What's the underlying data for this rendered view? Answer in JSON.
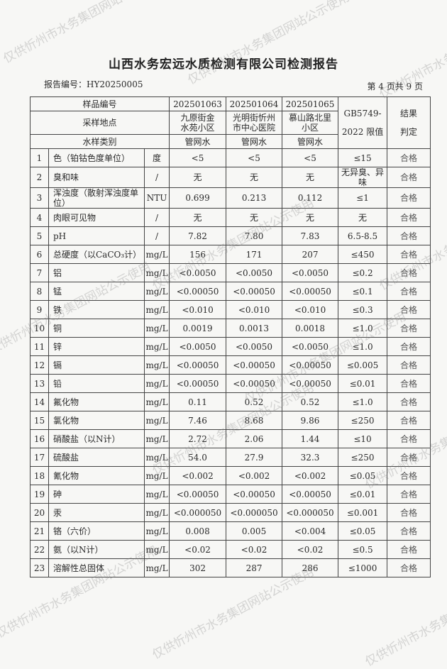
{
  "title": "山西水务宏远水质检测有限公司检测报告",
  "report_no": "报告编号：HY20250005",
  "page_no": "第 4 页共 9 页",
  "watermark": "仅供忻州市水务集团网站公示使用",
  "header": {
    "sample_no_label": "样品编号",
    "location_label": "采样地点",
    "type_label": "水样类别",
    "limit_label": "GB5749-2022 限值",
    "result_label": "结果判定",
    "samples": [
      {
        "no": "202501063",
        "location": "九原街金水苑小区",
        "type": "管网水"
      },
      {
        "no": "202501064",
        "location": "光明街忻州市中心医院",
        "type": "管网水"
      },
      {
        "no": "202501065",
        "location": "慕山路北里小区",
        "type": "管网水"
      }
    ]
  },
  "rows": [
    [
      "1",
      "色（铂钴色度单位）",
      "度",
      "<5",
      "<5",
      "<5",
      "≤15",
      "合格"
    ],
    [
      "2",
      "臭和味",
      "/",
      "无",
      "无",
      "无",
      "无异臭、异味",
      "合格"
    ],
    [
      "3",
      "浑浊度（散射浑浊度单位）",
      "NTU",
      "0.699",
      "0.213",
      "0.112",
      "≤1",
      "合格"
    ],
    [
      "4",
      "肉眼可见物",
      "/",
      "无",
      "无",
      "无",
      "无",
      "合格"
    ],
    [
      "5",
      "pH",
      "/",
      "7.82",
      "7.80",
      "7.83",
      "6.5-8.5",
      "合格"
    ],
    [
      "6",
      "总硬度（以CaCO₃计）",
      "mg/L",
      "156",
      "171",
      "207",
      "≤450",
      "合格"
    ],
    [
      "7",
      "铝",
      "mg/L",
      "<0.0050",
      "<0.0050",
      "<0.0050",
      "≤0.2",
      "合格"
    ],
    [
      "8",
      "锰",
      "mg/L",
      "<0.00050",
      "<0.00050",
      "<0.00050",
      "≤0.1",
      "合格"
    ],
    [
      "9",
      "铁",
      "mg/L",
      "<0.010",
      "<0.010",
      "<0.010",
      "≤0.3",
      "合格"
    ],
    [
      "10",
      "铜",
      "mg/L",
      "0.0019",
      "0.0013",
      "0.0018",
      "≤1.0",
      "合格"
    ],
    [
      "11",
      "锌",
      "mg/L",
      "<0.0050",
      "<0.0050",
      "<0.0050",
      "≤1.0",
      "合格"
    ],
    [
      "12",
      "镉",
      "mg/L",
      "<0.00050",
      "<0.00050",
      "<0.00050",
      "≤0.005",
      "合格"
    ],
    [
      "13",
      "铅",
      "mg/L",
      "<0.00050",
      "<0.00050",
      "<0.00050",
      "≤0.01",
      "合格"
    ],
    [
      "14",
      "氟化物",
      "mg/L",
      "0.11",
      "0.52",
      "0.52",
      "≤1.0",
      "合格"
    ],
    [
      "15",
      "氯化物",
      "mg/L",
      "7.46",
      "8.68",
      "9.86",
      "≤250",
      "合格"
    ],
    [
      "16",
      "硝酸盐（以N计）",
      "mg/L",
      "2.72",
      "2.06",
      "1.44",
      "≤10",
      "合格"
    ],
    [
      "17",
      "硫酸盐",
      "mg/L",
      "54.0",
      "27.9",
      "32.3",
      "≤250",
      "合格"
    ],
    [
      "18",
      "氰化物",
      "mg/L",
      "<0.002",
      "<0.002",
      "<0.002",
      "≤0.05",
      "合格"
    ],
    [
      "19",
      "砷",
      "mg/L",
      "<0.00050",
      "<0.00050",
      "<0.00050",
      "≤0.01",
      "合格"
    ],
    [
      "20",
      "汞",
      "mg/L",
      "<0.000050",
      "<0.000050",
      "<0.000050",
      "≤0.001",
      "合格"
    ],
    [
      "21",
      "铬（六价）",
      "mg/L",
      "0.008",
      "0.005",
      "<0.004",
      "≤0.05",
      "合格"
    ],
    [
      "22",
      "氨（以N计）",
      "mg/L",
      "<0.02",
      "<0.02",
      "<0.02",
      "≤0.5",
      "合格"
    ],
    [
      "23",
      "溶解性总固体",
      "mg/L",
      "302",
      "287",
      "286",
      "≤1000",
      "合格"
    ]
  ]
}
